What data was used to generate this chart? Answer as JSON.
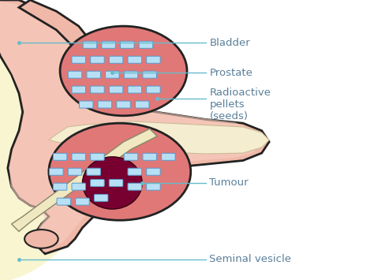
{
  "background_color": "#ffffff",
  "left_bg_color": "#f8f5d0",
  "labels": {
    "bladder": "Bladder",
    "prostate": "Prostate",
    "radioactive": "Radioactive\npellets\n(seeds)",
    "tumour": "Tumour",
    "seminal": "Seminal vesicle"
  },
  "label_color": "#5a7f9a",
  "line_color": "#66bbcc",
  "skin_color": "#f0b8a8",
  "skin_edge": "#222222",
  "prostate_fill": "#e07878",
  "prostate_edge": "#222222",
  "seed_fill": "#b8e0f5",
  "seed_edge": "#5599cc",
  "tumour_fill": "#780030",
  "urethra_fill": "#f5edd0",
  "urethra_edge": "#ccbb99",
  "needle_fill": "#f0e8c0",
  "needle_edge": "#888866"
}
